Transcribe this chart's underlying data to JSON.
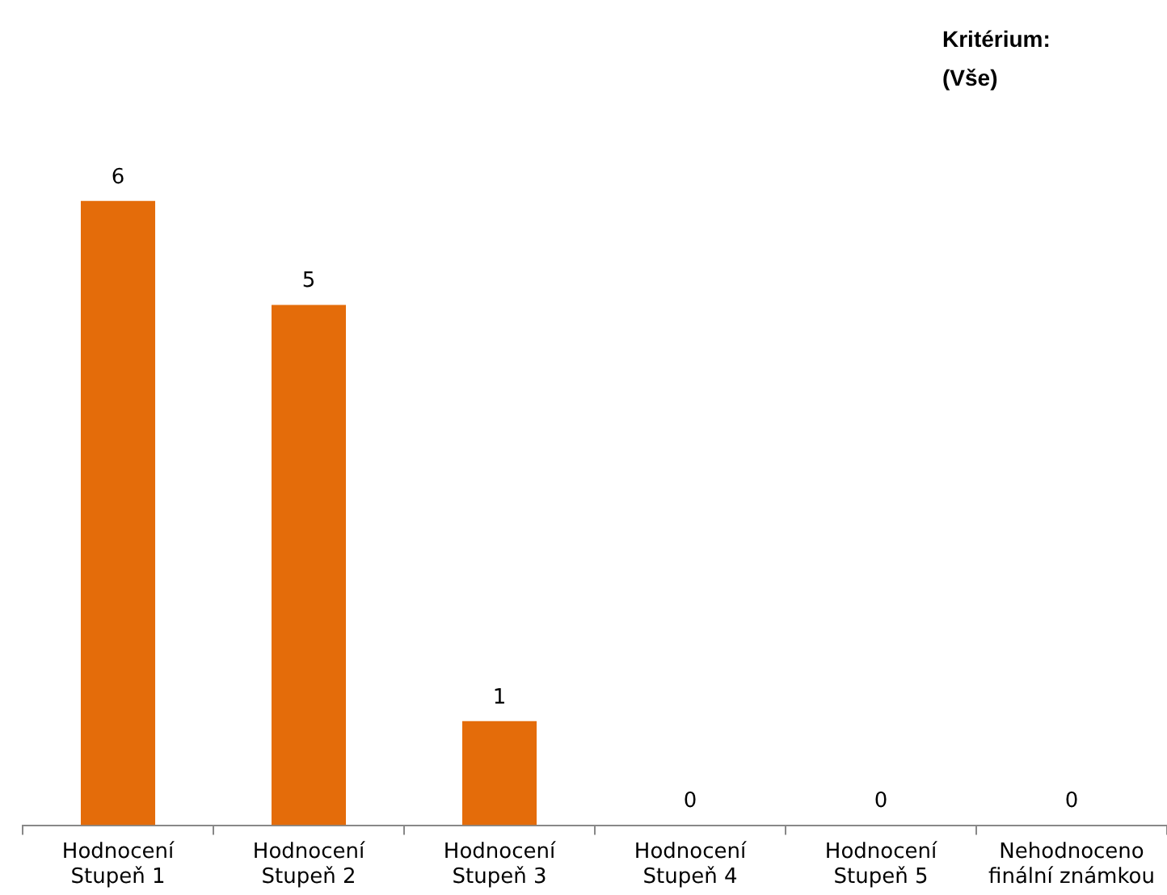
{
  "chart_data": {
    "type": "bar",
    "annotations": [
      "Kritérium:",
      "(Vše)"
    ],
    "categories": [
      "Hodnocení\nStupeň 1",
      "Hodnocení\nStupeň 2",
      "Hodnocení\nStupeň 3",
      "Hodnocení\nStupeň 4",
      "Hodnocení\nStupeň 5",
      "Nehodnoceno\nfinální známkou"
    ],
    "values": [
      6,
      5,
      1,
      0,
      0,
      0
    ],
    "color": "#e46c0a",
    "data_labels": true,
    "grid": false,
    "legend": false
  }
}
